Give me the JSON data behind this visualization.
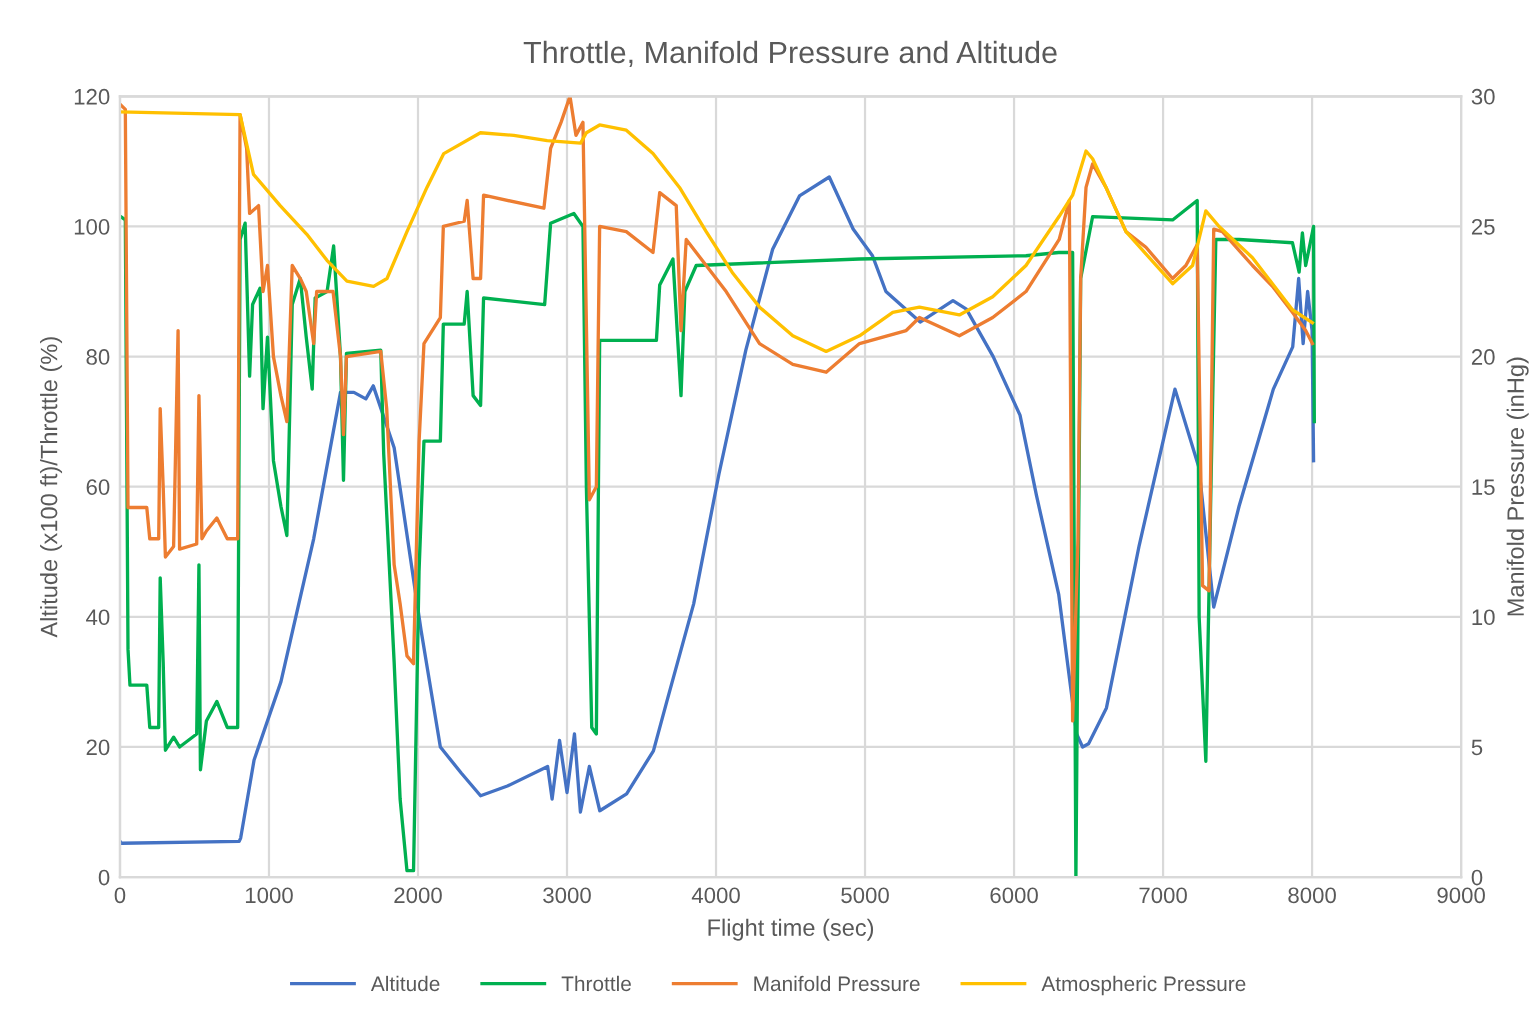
{
  "chart_data": {
    "type": "line",
    "title": "Throttle, Manifold Pressure and Altitude",
    "xlabel": "Flight time (sec)",
    "ylabel": "Altitude (x100 ft)/Throttle (%)",
    "y2label": "Manifold Pressure (inHg)",
    "xlim": [
      0,
      9000
    ],
    "xticks": [
      0,
      1000,
      2000,
      3000,
      4000,
      5000,
      6000,
      7000,
      8000,
      9000
    ],
    "ylim": [
      0,
      120
    ],
    "yticks": [
      0,
      20,
      40,
      60,
      80,
      100,
      120
    ],
    "y2lim": [
      0,
      30
    ],
    "y2ticks": [
      0,
      5,
      10,
      15,
      20,
      25,
      30
    ],
    "grid": true,
    "legend": "bottom",
    "marker": "none",
    "line_style": "solid",
    "series": [
      {
        "name": "Altitude",
        "color": "#4472c4",
        "x": [
          0,
          10,
          800,
          810,
          900,
          1080,
          1160,
          1300,
          1480,
          1570,
          1650,
          1700,
          1840,
          2020,
          2150,
          2290,
          2420,
          2600,
          2870,
          2900,
          2950,
          3000,
          3050,
          3090,
          3150,
          3220,
          3400,
          3580,
          3670,
          3850,
          4020,
          4200,
          4380,
          4560,
          4760,
          4920,
          5050,
          5140,
          5370,
          5590,
          5680,
          5860,
          6040,
          6150,
          6300,
          6420,
          6460,
          6500,
          6620,
          6840,
          7080,
          7240,
          7340,
          7510,
          7740,
          7870,
          7910,
          7940,
          7970,
          8000,
          8010
        ],
        "values": [
          5.5,
          5.2,
          5.5,
          6,
          18,
          30,
          38,
          52,
          74.5,
          74.5,
          73.5,
          75.5,
          66,
          38,
          20,
          16,
          12.5,
          14,
          17,
          12,
          21,
          13,
          22,
          10,
          17,
          10.2,
          12.8,
          19.4,
          27,
          42,
          62,
          81,
          96.5,
          104.7,
          107.6,
          99.6,
          95.5,
          90,
          85.3,
          88.6,
          87.3,
          80,
          71,
          58.7,
          43.4,
          22,
          20,
          20.5,
          26,
          51,
          75,
          63,
          41.5,
          57,
          75,
          81.5,
          92,
          82,
          90,
          84,
          64
        ]
      },
      {
        "name": "Throttle",
        "color": "#00b050",
        "x": [
          0,
          36,
          54,
          67,
          180,
          200,
          260,
          270,
          290,
          305,
          360,
          400,
          515,
          530,
          540,
          580,
          650,
          720,
          790,
          806,
          840,
          870,
          890,
          940,
          960,
          990,
          1030,
          1080,
          1120,
          1156,
          1210,
          1250,
          1290,
          1310,
          1390,
          1434,
          1480,
          1500,
          1520,
          1750,
          1770,
          1840,
          1880,
          1926,
          1970,
          2007,
          2040,
          2150,
          2170,
          2310,
          2330,
          2370,
          2420,
          2440,
          2850,
          2890,
          3046,
          3107,
          3130,
          3166,
          3197,
          3219,
          3600,
          3622,
          3711,
          3765,
          3791,
          3867,
          4960,
          6080,
          6300,
          6393,
          6415,
          6447,
          6527,
          7064,
          7229,
          7242,
          7287,
          7323,
          7354,
          7510,
          7868,
          7913,
          7935,
          7957,
          8010,
          8015
        ],
        "values": [
          101.6,
          101,
          35,
          29.5,
          29.5,
          23,
          23,
          46,
          33,
          19.5,
          21.5,
          20,
          22,
          48,
          16.5,
          24,
          27,
          23,
          23,
          98,
          100.5,
          77,
          88,
          90.5,
          72,
          83,
          64,
          57,
          52.5,
          88,
          92,
          83,
          75,
          89,
          90,
          97,
          80,
          61,
          80.5,
          81,
          65,
          33,
          12,
          1,
          1,
          47,
          67,
          67,
          85,
          85,
          90,
          74,
          72.5,
          89,
          88,
          100.5,
          102,
          100,
          60,
          23,
          22,
          82.5,
          82.5,
          91,
          95,
          74,
          90,
          94,
          95,
          95.5,
          96,
          96,
          0,
          92,
          101.5,
          101,
          104,
          40,
          17.8,
          62,
          98,
          98,
          97.5,
          93,
          99,
          94,
          100,
          70
        ]
      },
      {
        "name": "Manifold Pressure",
        "color": "#ed7d31",
        "axis": "y2",
        "x": [
          0,
          36,
          54,
          180,
          200,
          260,
          270,
          290,
          305,
          360,
          390,
          400,
          515,
          530,
          550,
          580,
          650,
          720,
          790,
          806,
          850,
          870,
          930,
          960,
          990,
          1030,
          1080,
          1120,
          1156,
          1210,
          1250,
          1300,
          1320,
          1430,
          1480,
          1500,
          1520,
          1750,
          1790,
          1840,
          1880,
          1926,
          1970,
          2007,
          2040,
          2150,
          2170,
          2310,
          2330,
          2370,
          2420,
          2440,
          2845,
          2890,
          2960,
          3020,
          3060,
          3107,
          3150,
          3197,
          3219,
          3398,
          3577,
          3622,
          3733,
          3765,
          3800,
          4068,
          4292,
          4515,
          4739,
          4963,
          5276,
          5365,
          5633,
          5857,
          6080,
          6303,
          6371,
          6393,
          6429,
          6447,
          6483,
          6527,
          6617,
          6751,
          6885,
          7064,
          7153,
          7229,
          7265,
          7309,
          7340,
          7398,
          7600,
          7734,
          7868,
          7957,
          8002
        ],
        "values": [
          29.7,
          29.5,
          14.2,
          14.2,
          13,
          13,
          18,
          15,
          12.3,
          12.7,
          21,
          12.6,
          12.8,
          18.5,
          13,
          13.3,
          13.8,
          13,
          13,
          29.3,
          28,
          25.5,
          25.8,
          22.5,
          23.5,
          20,
          18.5,
          17.5,
          23.5,
          23,
          22.5,
          20.5,
          22.5,
          22.5,
          20,
          17,
          20,
          20.2,
          18,
          12,
          10.5,
          8.5,
          8.2,
          16.7,
          20.5,
          21.5,
          25,
          25.2,
          26,
          23,
          23,
          26.2,
          25.7,
          28,
          29,
          30,
          28.5,
          29,
          14.5,
          15,
          25,
          24.8,
          24,
          26.3,
          25.8,
          21,
          24.5,
          22.5,
          20.5,
          19.7,
          19.4,
          20.5,
          21,
          21.5,
          20.8,
          21.5,
          22.5,
          24.5,
          26,
          6,
          13,
          23,
          26.5,
          27.4,
          26.5,
          24.8,
          24.2,
          23,
          23.5,
          24.3,
          11.2,
          11,
          24.9,
          24.8,
          23.5,
          22.7,
          21.7,
          21,
          20.5
        ]
      },
      {
        "name": "Atmospheric Pressure",
        "color": "#ffc000",
        "axis": "y2",
        "x": [
          0,
          806,
          896,
          1075,
          1254,
          1389,
          1523,
          1702,
          1792,
          1926,
          2060,
          2173,
          2419,
          2643,
          2867,
          3091,
          3130,
          3219,
          3398,
          3577,
          3755,
          3934,
          4113,
          4292,
          4515,
          4739,
          4963,
          5186,
          5365,
          5633,
          5857,
          6080,
          6304,
          6393,
          6483,
          6527,
          6617,
          6751,
          7064,
          7198,
          7287,
          7376,
          7600,
          7734,
          7868,
          8002
        ],
        "values": [
          29.4,
          29.3,
          27,
          25.8,
          24.7,
          23.7,
          22.9,
          22.7,
          23,
          24.8,
          26.5,
          27.8,
          28.6,
          28.5,
          28.3,
          28.2,
          28.6,
          28.9,
          28.7,
          27.8,
          26.5,
          24.8,
          23.2,
          21.9,
          20.8,
          20.2,
          20.8,
          21.7,
          21.9,
          21.6,
          22.3,
          23.5,
          25.4,
          26.2,
          27.9,
          27.6,
          26.5,
          24.8,
          22.8,
          23.5,
          25.6,
          25,
          23.8,
          22.8,
          21.8,
          21.3
        ]
      }
    ]
  }
}
